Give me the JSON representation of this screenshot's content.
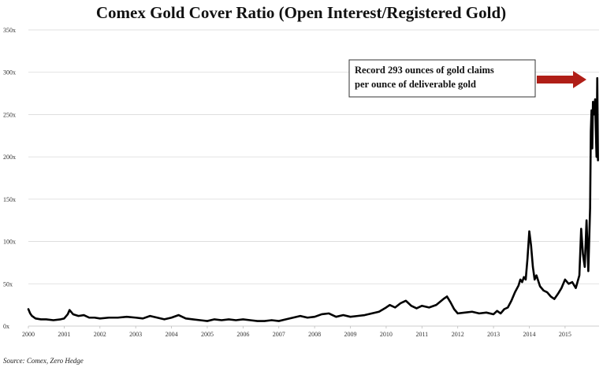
{
  "chart_data": {
    "type": "line",
    "title": "Comex Gold Cover Ratio (Open Interest/Registered Gold)",
    "source": "Source: Comex, Zero Hedge",
    "annotation": {
      "line1": "Record 293 ounces of gold claims",
      "line2": "per ounce of deliverable gold",
      "arrow_color": "#b01e17"
    },
    "xlim": [
      2000.0,
      2015.95
    ],
    "ylim": [
      0,
      350
    ],
    "x_ticks": [
      {
        "value": 2000,
        "label": "2000"
      },
      {
        "value": 2001,
        "label": "2001"
      },
      {
        "value": 2002,
        "label": "2002"
      },
      {
        "value": 2003,
        "label": "2003"
      },
      {
        "value": 2004,
        "label": "2004"
      },
      {
        "value": 2005,
        "label": "2005"
      },
      {
        "value": 2006,
        "label": "2006"
      },
      {
        "value": 2007,
        "label": "2007"
      },
      {
        "value": 2008,
        "label": "2008"
      },
      {
        "value": 2009,
        "label": "2009"
      },
      {
        "value": 2010,
        "label": "2010"
      },
      {
        "value": 2011,
        "label": "2011"
      },
      {
        "value": 2012,
        "label": "2012"
      },
      {
        "value": 2013,
        "label": "2013"
      },
      {
        "value": 2014,
        "label": "2014"
      },
      {
        "value": 2015,
        "label": "2015"
      }
    ],
    "y_ticks": [
      {
        "value": 0,
        "label": "0x"
      },
      {
        "value": 50,
        "label": "50x"
      },
      {
        "value": 100,
        "label": "100x"
      },
      {
        "value": 150,
        "label": "150x"
      },
      {
        "value": 200,
        "label": "200x"
      },
      {
        "value": 250,
        "label": "250x"
      },
      {
        "value": 300,
        "label": "300x"
      },
      {
        "value": 350,
        "label": "350x"
      }
    ],
    "grid": true,
    "line_color": "#000000",
    "series": [
      {
        "x": [
          2000.0,
          2000.05,
          2000.1,
          2000.2,
          2000.35,
          2000.5,
          2000.7,
          2000.9,
          2001.0,
          2001.1,
          2001.15,
          2001.25,
          2001.4,
          2001.55,
          2001.7,
          2001.85,
          2002.0,
          2002.25,
          2002.5,
          2002.75,
          2003.0,
          2003.2,
          2003.4,
          2003.6,
          2003.8,
          2004.0,
          2004.2,
          2004.4,
          2004.6,
          2004.8,
          2005.0,
          2005.2,
          2005.4,
          2005.6,
          2005.8,
          2006.0,
          2006.2,
          2006.4,
          2006.6,
          2006.8,
          2007.0,
          2007.2,
          2007.4,
          2007.6,
          2007.8,
          2008.0,
          2008.2,
          2008.4,
          2008.6,
          2008.8,
          2009.0,
          2009.2,
          2009.4,
          2009.6,
          2009.8,
          2010.0,
          2010.1,
          2010.25,
          2010.4,
          2010.55,
          2010.7,
          2010.85,
          2011.0,
          2011.2,
          2011.4,
          2011.6,
          2011.7,
          2011.8,
          2011.9,
          2012.0,
          2012.2,
          2012.4,
          2012.6,
          2012.8,
          2013.0,
          2013.1,
          2013.2,
          2013.3,
          2013.4,
          2013.5,
          2013.6,
          2013.7,
          2013.75,
          2013.8,
          2013.85,
          2013.9,
          2013.95,
          2014.0,
          2014.05,
          2014.1,
          2014.15,
          2014.2,
          2014.3,
          2014.4,
          2014.5,
          2014.6,
          2014.7,
          2014.8,
          2014.9,
          2015.0,
          2015.1,
          2015.2,
          2015.3,
          2015.4,
          2015.45,
          2015.5,
          2015.55,
          2015.6,
          2015.65,
          2015.7,
          2015.72,
          2015.74,
          2015.76,
          2015.78,
          2015.8,
          2015.82,
          2015.84,
          2015.86,
          2015.88,
          2015.9,
          2015.92
        ],
        "y": [
          20,
          15,
          12,
          9,
          8,
          8,
          7,
          8,
          9,
          14,
          19,
          14,
          12,
          13,
          10,
          10,
          9,
          10,
          10,
          11,
          10,
          9,
          12,
          10,
          8,
          10,
          13,
          9,
          8,
          7,
          6,
          8,
          7,
          8,
          7,
          8,
          7,
          6,
          6,
          7,
          6,
          8,
          10,
          12,
          10,
          11,
          14,
          15,
          11,
          13,
          11,
          12,
          13,
          15,
          17,
          22,
          25,
          22,
          27,
          30,
          24,
          21,
          24,
          22,
          25,
          32,
          35,
          28,
          20,
          15,
          16,
          17,
          15,
          16,
          14,
          18,
          15,
          20,
          22,
          30,
          40,
          48,
          55,
          52,
          58,
          55,
          80,
          112,
          95,
          70,
          55,
          60,
          47,
          42,
          40,
          35,
          32,
          38,
          45,
          55,
          50,
          52,
          45,
          60,
          115,
          85,
          70,
          125,
          65,
          140,
          230,
          255,
          210,
          265,
          250,
          260,
          268,
          230,
          200,
          293,
          196
        ]
      }
    ]
  }
}
